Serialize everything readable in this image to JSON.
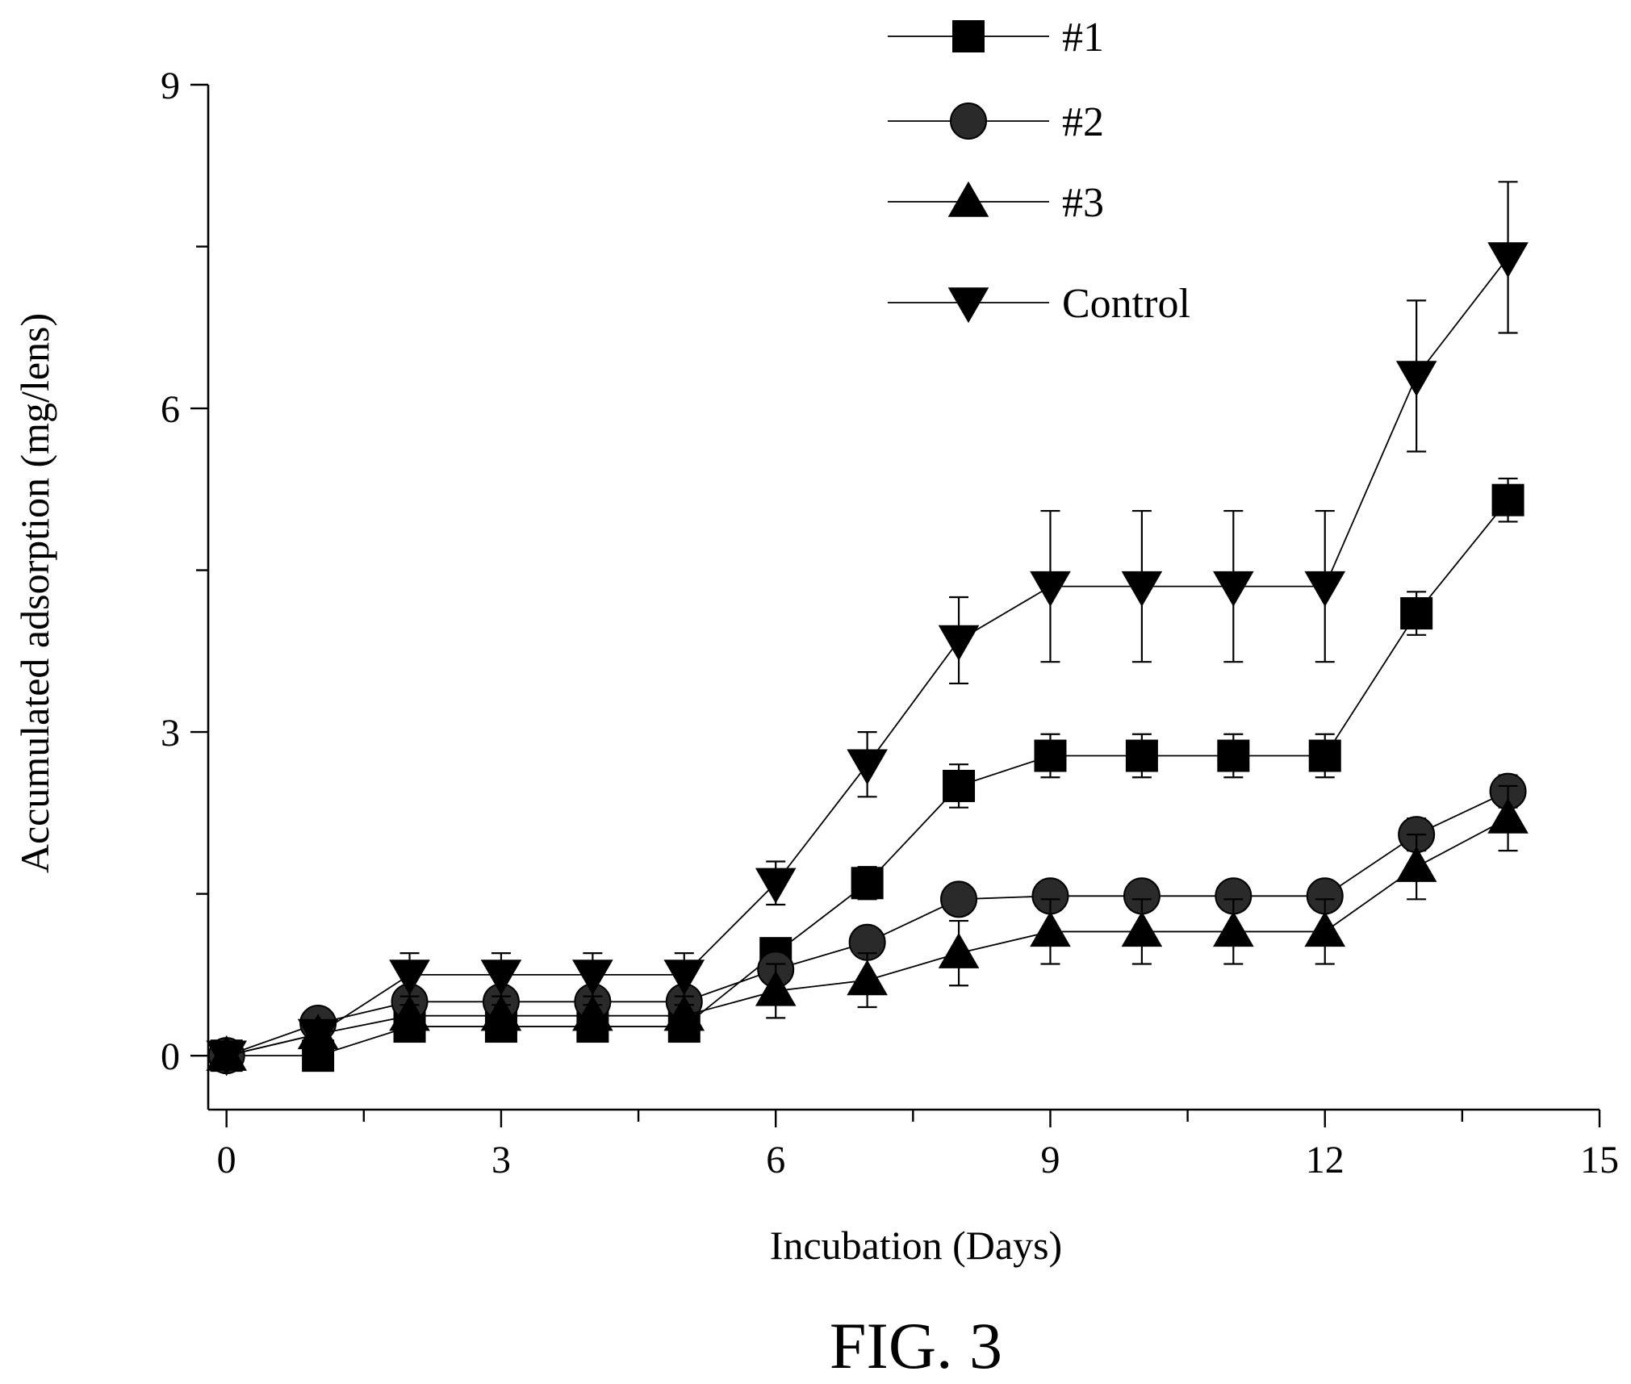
{
  "chart_data": {
    "type": "line",
    "xlabel": "Incubation (Days)",
    "ylabel": "Accumulated adsorption (mg/lens)",
    "xlim": [
      -0.2,
      15
    ],
    "ylim": [
      -0.5,
      9
    ],
    "xticks": [
      0,
      3,
      6,
      9,
      12,
      15
    ],
    "yticks": [
      0,
      3,
      6,
      9
    ],
    "grid": false,
    "legend_position": "top-right",
    "caption": "FIG. 3",
    "x": [
      0,
      1,
      2,
      3,
      4,
      5,
      6,
      7,
      8,
      9,
      10,
      11,
      12,
      13,
      14
    ],
    "series": [
      {
        "name": "#1",
        "marker": "square",
        "values": [
          0,
          0,
          0.27,
          0.27,
          0.27,
          0.27,
          0.95,
          1.6,
          2.5,
          2.78,
          2.78,
          2.78,
          2.78,
          4.1,
          5.15
        ],
        "errors": [
          0,
          0,
          0.05,
          0.05,
          0.05,
          0.05,
          0.1,
          0.15,
          0.2,
          0.2,
          0.2,
          0.2,
          0.2,
          0.2,
          0.2
        ]
      },
      {
        "name": "#2",
        "marker": "circle",
        "values": [
          0,
          0.3,
          0.5,
          0.5,
          0.5,
          0.5,
          0.8,
          1.05,
          1.45,
          1.48,
          1.48,
          1.48,
          1.48,
          2.05,
          2.45
        ],
        "errors": [
          0,
          0.05,
          0.05,
          0.05,
          0.05,
          0.05,
          0.1,
          0.1,
          0.1,
          0.1,
          0.1,
          0.1,
          0.1,
          0.15,
          0.15
        ]
      },
      {
        "name": "#3",
        "marker": "triangle-up",
        "values": [
          0,
          0.2,
          0.37,
          0.37,
          0.37,
          0.37,
          0.6,
          0.7,
          0.95,
          1.15,
          1.15,
          1.15,
          1.15,
          1.75,
          2.2
        ],
        "errors": [
          0,
          0.05,
          0.1,
          0.1,
          0.1,
          0.1,
          0.25,
          0.25,
          0.3,
          0.3,
          0.3,
          0.3,
          0.3,
          0.3,
          0.3
        ]
      },
      {
        "name": "Control",
        "marker": "triangle-down",
        "values": [
          0,
          0.2,
          0.75,
          0.75,
          0.75,
          0.75,
          1.6,
          2.7,
          3.85,
          4.35,
          4.35,
          4.35,
          4.35,
          6.3,
          7.4
        ],
        "errors": [
          0,
          0.05,
          0.2,
          0.2,
          0.2,
          0.2,
          0.2,
          0.3,
          0.4,
          0.7,
          0.7,
          0.7,
          0.7,
          0.7,
          0.7
        ]
      }
    ]
  }
}
